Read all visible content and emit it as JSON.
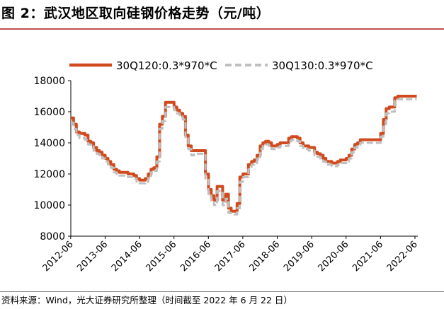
{
  "header": {
    "title": "图 2：武汉地区取向硅钢价格走势（元/吨）"
  },
  "footer": {
    "source": "资料来源：Wind，光大证券研究所整理（时间截至 2022 年 6 月 22 日）"
  },
  "chart_data": {
    "type": "line",
    "title": "",
    "xlabel": "",
    "ylabel": "",
    "ylim": [
      8000,
      18000
    ],
    "yticks": [
      "8000",
      "10000",
      "12000",
      "14000",
      "16000",
      "18000"
    ],
    "xlim": [
      2012.42,
      2022.5
    ],
    "xticks": [
      "2012-06",
      "2013-06",
      "2014-06",
      "2015-06",
      "2016-06",
      "2017-06",
      "2018-06",
      "2019-06",
      "2020-06",
      "2021-06",
      "2022-06"
    ],
    "legend_position": "top",
    "grid": false,
    "series": [
      {
        "name": "30Q120:0.3*970*C",
        "color": "#d14a1e",
        "style": "solid",
        "points": [
          [
            2012.42,
            15600
          ],
          [
            2012.5,
            15200
          ],
          [
            2012.58,
            14700
          ],
          [
            2012.67,
            14600
          ],
          [
            2012.75,
            14600
          ],
          [
            2012.83,
            14500
          ],
          [
            2012.92,
            14100
          ],
          [
            2013.0,
            14000
          ],
          [
            2013.08,
            13700
          ],
          [
            2013.17,
            13500
          ],
          [
            2013.25,
            13400
          ],
          [
            2013.33,
            13200
          ],
          [
            2013.42,
            13000
          ],
          [
            2013.5,
            12800
          ],
          [
            2013.58,
            12600
          ],
          [
            2013.67,
            12300
          ],
          [
            2013.75,
            12200
          ],
          [
            2013.83,
            12100
          ],
          [
            2013.92,
            12100
          ],
          [
            2014.0,
            12100
          ],
          [
            2014.08,
            12000
          ],
          [
            2014.17,
            12000
          ],
          [
            2014.25,
            11900
          ],
          [
            2014.33,
            11700
          ],
          [
            2014.42,
            11600
          ],
          [
            2014.5,
            11600
          ],
          [
            2014.58,
            11700
          ],
          [
            2014.67,
            12000
          ],
          [
            2014.75,
            12300
          ],
          [
            2014.83,
            12400
          ],
          [
            2014.92,
            13100
          ],
          [
            2015.0,
            15200
          ],
          [
            2015.08,
            15700
          ],
          [
            2015.17,
            16600
          ],
          [
            2015.25,
            16600
          ],
          [
            2015.33,
            16600
          ],
          [
            2015.42,
            16300
          ],
          [
            2015.5,
            16100
          ],
          [
            2015.58,
            15900
          ],
          [
            2015.67,
            15700
          ],
          [
            2015.75,
            14500
          ],
          [
            2015.83,
            13800
          ],
          [
            2015.92,
            13500
          ],
          [
            2016.0,
            13500
          ],
          [
            2016.08,
            13500
          ],
          [
            2016.17,
            13500
          ],
          [
            2016.25,
            13500
          ],
          [
            2016.33,
            12000
          ],
          [
            2016.42,
            11000
          ],
          [
            2016.5,
            10600
          ],
          [
            2016.58,
            10300
          ],
          [
            2016.67,
            11200
          ],
          [
            2016.75,
            11200
          ],
          [
            2016.83,
            10300
          ],
          [
            2016.92,
            10700
          ],
          [
            2017.0,
            9800
          ],
          [
            2017.08,
            9600
          ],
          [
            2017.17,
            9600
          ],
          [
            2017.25,
            10100
          ],
          [
            2017.33,
            11800
          ],
          [
            2017.42,
            12000
          ],
          [
            2017.5,
            12000
          ],
          [
            2017.58,
            12600
          ],
          [
            2017.67,
            12800
          ],
          [
            2017.75,
            12900
          ],
          [
            2017.83,
            13200
          ],
          [
            2017.92,
            13800
          ],
          [
            2018.0,
            14000
          ],
          [
            2018.08,
            14100
          ],
          [
            2018.17,
            14000
          ],
          [
            2018.25,
            13800
          ],
          [
            2018.33,
            13800
          ],
          [
            2018.42,
            13900
          ],
          [
            2018.5,
            14000
          ],
          [
            2018.58,
            14000
          ],
          [
            2018.67,
            14000
          ],
          [
            2018.75,
            14300
          ],
          [
            2018.83,
            14400
          ],
          [
            2018.92,
            14400
          ],
          [
            2019.0,
            14300
          ],
          [
            2019.08,
            14000
          ],
          [
            2019.17,
            13800
          ],
          [
            2019.25,
            13800
          ],
          [
            2019.33,
            13700
          ],
          [
            2019.42,
            13700
          ],
          [
            2019.5,
            13400
          ],
          [
            2019.58,
            13300
          ],
          [
            2019.67,
            13200
          ],
          [
            2019.75,
            13000
          ],
          [
            2019.83,
            12800
          ],
          [
            2019.92,
            12800
          ],
          [
            2020.0,
            12700
          ],
          [
            2020.08,
            12700
          ],
          [
            2020.17,
            12800
          ],
          [
            2020.25,
            12900
          ],
          [
            2020.33,
            12900
          ],
          [
            2020.42,
            13000
          ],
          [
            2020.5,
            13200
          ],
          [
            2020.58,
            13600
          ],
          [
            2020.67,
            13900
          ],
          [
            2020.75,
            14000
          ],
          [
            2020.83,
            14200
          ],
          [
            2020.92,
            14200
          ],
          [
            2021.0,
            14200
          ],
          [
            2021.08,
            14200
          ],
          [
            2021.17,
            14200
          ],
          [
            2021.25,
            14200
          ],
          [
            2021.33,
            14200
          ],
          [
            2021.42,
            14600
          ],
          [
            2021.5,
            15500
          ],
          [
            2021.58,
            16200
          ],
          [
            2021.67,
            16300
          ],
          [
            2021.75,
            16300
          ],
          [
            2021.83,
            16900
          ],
          [
            2021.92,
            17000
          ],
          [
            2022.0,
            17000
          ],
          [
            2022.08,
            17000
          ],
          [
            2022.17,
            17000
          ],
          [
            2022.25,
            17000
          ],
          [
            2022.33,
            17000
          ],
          [
            2022.42,
            17000
          ],
          [
            2022.47,
            17000
          ]
        ]
      },
      {
        "name": "30Q130:0.3*970*C",
        "color": "#bfbfbf",
        "style": "dashed",
        "points": [
          [
            2012.42,
            15300
          ],
          [
            2012.5,
            14900
          ],
          [
            2012.58,
            14500
          ],
          [
            2012.67,
            14300
          ],
          [
            2012.75,
            14300
          ],
          [
            2012.83,
            14200
          ],
          [
            2012.92,
            13900
          ],
          [
            2013.0,
            13800
          ],
          [
            2013.08,
            13500
          ],
          [
            2013.17,
            13300
          ],
          [
            2013.25,
            13200
          ],
          [
            2013.33,
            13000
          ],
          [
            2013.42,
            12800
          ],
          [
            2013.5,
            12600
          ],
          [
            2013.58,
            12400
          ],
          [
            2013.67,
            12100
          ],
          [
            2013.75,
            12000
          ],
          [
            2013.83,
            11900
          ],
          [
            2013.92,
            11900
          ],
          [
            2014.0,
            11900
          ],
          [
            2014.08,
            11800
          ],
          [
            2014.17,
            11800
          ],
          [
            2014.25,
            11700
          ],
          [
            2014.33,
            11500
          ],
          [
            2014.42,
            11400
          ],
          [
            2014.5,
            11400
          ],
          [
            2014.58,
            11500
          ],
          [
            2014.67,
            11800
          ],
          [
            2014.75,
            12100
          ],
          [
            2014.83,
            12200
          ],
          [
            2014.92,
            12800
          ],
          [
            2015.0,
            14900
          ],
          [
            2015.08,
            15400
          ],
          [
            2015.17,
            16300
          ],
          [
            2015.25,
            16300
          ],
          [
            2015.33,
            16300
          ],
          [
            2015.42,
            16100
          ],
          [
            2015.5,
            15900
          ],
          [
            2015.58,
            15700
          ],
          [
            2015.67,
            15500
          ],
          [
            2015.75,
            14300
          ],
          [
            2015.83,
            13600
          ],
          [
            2015.92,
            13200
          ],
          [
            2016.0,
            13300
          ],
          [
            2016.08,
            13300
          ],
          [
            2016.17,
            13300
          ],
          [
            2016.25,
            13300
          ],
          [
            2016.33,
            11700
          ],
          [
            2016.42,
            10700
          ],
          [
            2016.5,
            10300
          ],
          [
            2016.58,
            10000
          ],
          [
            2016.67,
            10900
          ],
          [
            2016.75,
            10900
          ],
          [
            2016.83,
            10000
          ],
          [
            2016.92,
            10400
          ],
          [
            2017.0,
            9500
          ],
          [
            2017.08,
            9400
          ],
          [
            2017.17,
            9400
          ],
          [
            2017.25,
            9800
          ],
          [
            2017.33,
            11500
          ],
          [
            2017.42,
            11800
          ],
          [
            2017.5,
            11800
          ],
          [
            2017.58,
            12300
          ],
          [
            2017.67,
            12600
          ],
          [
            2017.75,
            12700
          ],
          [
            2017.83,
            13000
          ],
          [
            2017.92,
            13600
          ],
          [
            2018.0,
            13800
          ],
          [
            2018.08,
            13900
          ],
          [
            2018.17,
            13800
          ],
          [
            2018.25,
            13600
          ],
          [
            2018.33,
            13600
          ],
          [
            2018.42,
            13700
          ],
          [
            2018.5,
            13800
          ],
          [
            2018.58,
            13800
          ],
          [
            2018.67,
            13800
          ],
          [
            2018.75,
            14100
          ],
          [
            2018.83,
            14200
          ],
          [
            2018.92,
            14200
          ],
          [
            2019.0,
            14100
          ],
          [
            2019.08,
            13800
          ],
          [
            2019.17,
            13600
          ],
          [
            2019.25,
            13600
          ],
          [
            2019.33,
            13500
          ],
          [
            2019.42,
            13500
          ],
          [
            2019.5,
            13200
          ],
          [
            2019.58,
            13100
          ],
          [
            2019.67,
            13000
          ],
          [
            2019.75,
            12800
          ],
          [
            2019.83,
            12600
          ],
          [
            2019.92,
            12600
          ],
          [
            2020.0,
            12500
          ],
          [
            2020.08,
            12500
          ],
          [
            2020.17,
            12600
          ],
          [
            2020.25,
            12700
          ],
          [
            2020.33,
            12700
          ],
          [
            2020.42,
            12800
          ],
          [
            2020.5,
            13000
          ],
          [
            2020.58,
            13400
          ],
          [
            2020.67,
            13700
          ],
          [
            2020.75,
            13800
          ],
          [
            2020.83,
            14000
          ],
          [
            2020.92,
            14000
          ],
          [
            2021.0,
            14000
          ],
          [
            2021.08,
            14000
          ],
          [
            2021.17,
            14000
          ],
          [
            2021.25,
            14000
          ],
          [
            2021.33,
            14000
          ],
          [
            2021.42,
            14400
          ],
          [
            2021.5,
            15200
          ],
          [
            2021.58,
            15900
          ],
          [
            2021.67,
            16000
          ],
          [
            2021.75,
            16000
          ],
          [
            2021.83,
            16700
          ],
          [
            2021.92,
            16800
          ],
          [
            2022.0,
            16800
          ],
          [
            2022.08,
            16800
          ],
          [
            2022.17,
            16800
          ],
          [
            2022.25,
            16800
          ],
          [
            2022.33,
            16800
          ],
          [
            2022.42,
            16800
          ],
          [
            2022.47,
            16800
          ]
        ]
      }
    ]
  }
}
